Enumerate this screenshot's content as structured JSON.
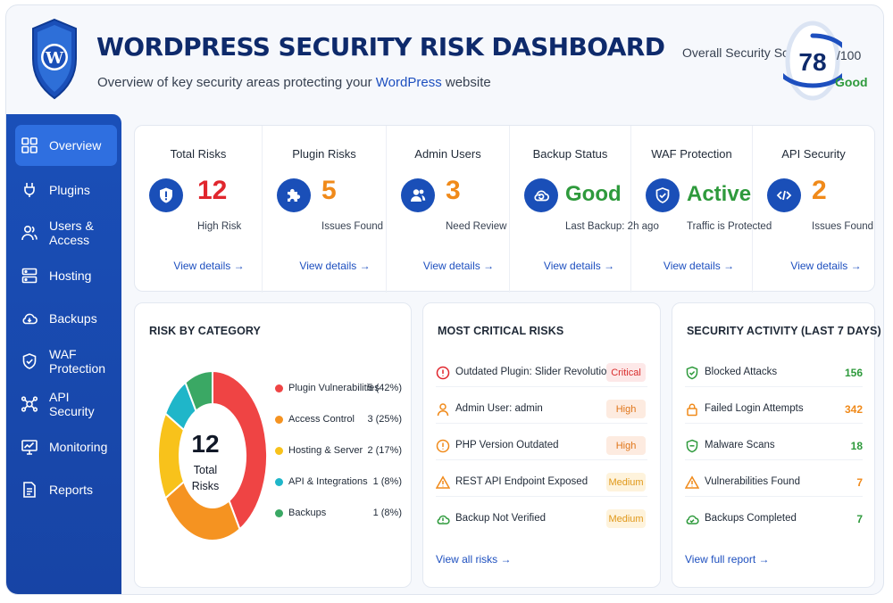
{
  "header": {
    "title": "WORDPRESS SECURITY RISK DASHBOARD",
    "subtitle_pre": "Overview of key security areas protecting your ",
    "subtitle_hl": "WordPress",
    "subtitle_post": " website",
    "score_label": "Overall Security Score",
    "score": "78",
    "score_fraction": 0.78,
    "score_max": "/100",
    "score_status": "Good"
  },
  "sidebar": {
    "items": [
      {
        "label": "Overview",
        "icon": "grid-icon"
      },
      {
        "label": "Plugins",
        "icon": "plug-icon"
      },
      {
        "label": "Users & Access",
        "icon": "users-icon"
      },
      {
        "label": "Hosting",
        "icon": "server-icon"
      },
      {
        "label": "Backups",
        "icon": "cloud-backup-icon"
      },
      {
        "label": "WAF Protection",
        "icon": "shield-check-icon"
      },
      {
        "label": "API Security",
        "icon": "api-nodes-icon"
      },
      {
        "label": "Monitoring",
        "icon": "monitor-chart-icon"
      },
      {
        "label": "Reports",
        "icon": "report-icon"
      }
    ]
  },
  "stats": [
    {
      "title": "Total Risks",
      "value": "12",
      "sub": "High Risk",
      "link": "View details →",
      "icon": "shield-alert-icon",
      "color": "#e0262d"
    },
    {
      "title": "Plugin Risks",
      "value": "5",
      "sub": "Issues Found",
      "link": "View details →",
      "icon": "puzzle-icon",
      "color": "#f08a1a"
    },
    {
      "title": "Admin Users",
      "value": "3",
      "sub": "Need Review",
      "link": "View details →",
      "icon": "users-icon",
      "color": "#f08a1a"
    },
    {
      "title": "Backup Status",
      "value": "Good",
      "sub": "Last Backup: 2h ago",
      "link": "View details →",
      "icon": "cloud-backup-icon",
      "color": "#2e9a3c"
    },
    {
      "title": "WAF Protection",
      "value": "Active",
      "sub": "Traffic is Protected",
      "link": "View details →",
      "icon": "shield-check-icon",
      "color": "#2e9a3c"
    },
    {
      "title": "API Security",
      "value": "2",
      "sub": "Issues Found",
      "link": "View details →",
      "icon": "code-icon",
      "color": "#f08a1a"
    }
  ],
  "risk_by_category": {
    "title": "RISK BY CATEGORY",
    "center_value": "12",
    "center_label_1": "Total",
    "center_label_2": "Risks",
    "items": [
      {
        "name": "Plugin Vulnerabilities",
        "value": "5 (42%)",
        "count": 5,
        "color": "#ef4444"
      },
      {
        "name": "Access Control",
        "value": "3 (25%)",
        "count": 3,
        "color": "#f59321"
      },
      {
        "name": "Hosting & Server",
        "value": "2 (17%)",
        "count": 2,
        "color": "#f8c21b"
      },
      {
        "name": "API & Integrations",
        "value": "1 (8%)",
        "count": 1,
        "color": "#1fb6c9"
      },
      {
        "name": "Backups",
        "value": "1 (8%)",
        "count": 1,
        "color": "#3aa864"
      }
    ]
  },
  "critical_risks": {
    "title": "MOST CRITICAL RISKS",
    "items": [
      {
        "text": "Outdated Plugin: Slider Revolution",
        "badge": "Critical",
        "icon": "alert-circle-icon"
      },
      {
        "text": "Admin User: admin",
        "badge": "High",
        "icon": "user-icon"
      },
      {
        "text": "PHP Version Outdated",
        "badge": "High",
        "icon": "alert-circle-icon"
      },
      {
        "text": "REST API Endpoint Exposed",
        "badge": "Medium",
        "icon": "warning-triangle-icon"
      },
      {
        "text": "Backup Not Verified",
        "badge": "Medium",
        "icon": "cloud-warning-icon"
      }
    ],
    "link": "View all risks →"
  },
  "activity": {
    "title": "SECURITY ACTIVITY (LAST 7 DAYS)",
    "items": [
      {
        "text": "Blocked Attacks",
        "value": "156",
        "icon": "shield-check-icon",
        "color": "#2e9a3c"
      },
      {
        "text": "Failed Login Attempts",
        "value": "342",
        "icon": "lock-icon",
        "color": "#f08a1a"
      },
      {
        "text": "Malware Scans",
        "value": "18",
        "icon": "shield-scan-icon",
        "color": "#2e9a3c"
      },
      {
        "text": "Vulnerabilities Found",
        "value": "7",
        "icon": "warning-triangle-icon",
        "color": "#f08a1a"
      },
      {
        "text": "Backups Completed",
        "value": "7",
        "icon": "cloud-check-icon",
        "color": "#2e9a3c"
      }
    ],
    "link": "View full report →"
  },
  "colors": {
    "brand": "#1a4fb8",
    "critical": "#e0262d",
    "warning": "#f08a1a",
    "success": "#2e9a3c",
    "link": "#1d4fbf"
  }
}
